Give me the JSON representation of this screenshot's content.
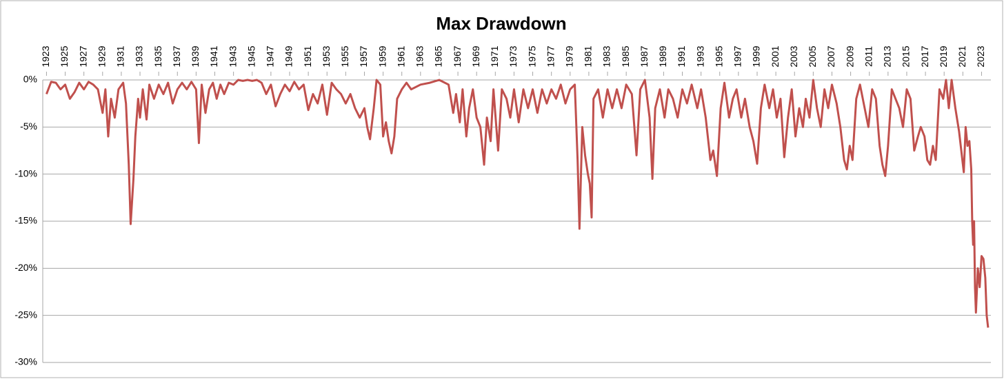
{
  "chart_data": {
    "type": "line",
    "title": "Max Drawdown",
    "color": "#c0504d",
    "grid": true,
    "xlim": [
      1922.6,
      2024.0
    ],
    "xticks": [
      1923,
      1925,
      1927,
      1929,
      1931,
      1933,
      1935,
      1937,
      1939,
      1941,
      1943,
      1945,
      1947,
      1949,
      1951,
      1953,
      1955,
      1957,
      1959,
      1961,
      1963,
      1965,
      1967,
      1969,
      1971,
      1973,
      1975,
      1977,
      1979,
      1981,
      1983,
      1985,
      1987,
      1989,
      1991,
      1993,
      1995,
      1997,
      1999,
      2001,
      2003,
      2005,
      2007,
      2009,
      2011,
      2013,
      2015,
      2017,
      2019,
      2021,
      2023
    ],
    "ylim": [
      -30,
      0
    ],
    "yticks": [
      {
        "value": 0,
        "label": "0%"
      },
      {
        "value": -5,
        "label": "-5%"
      },
      {
        "value": -10,
        "label": "-10%"
      },
      {
        "value": -15,
        "label": "-15%"
      },
      {
        "value": -20,
        "label": "-20%"
      },
      {
        "value": -25,
        "label": "-25%"
      },
      {
        "value": -30,
        "label": "-30%"
      }
    ],
    "x": [
      1923,
      1923.5,
      1924,
      1924.5,
      1925,
      1925.5,
      1926,
      1926.5,
      1927,
      1927.5,
      1928,
      1928.5,
      1929,
      1929.3,
      1929.6,
      1929.9,
      1930.3,
      1930.7,
      1931.2,
      1931.5,
      1931.8,
      1932,
      1932.3,
      1932.5,
      1932.8,
      1933,
      1933.3,
      1933.7,
      1934,
      1934.5,
      1935,
      1935.5,
      1936,
      1936.5,
      1937,
      1937.5,
      1938,
      1938.5,
      1939,
      1939.3,
      1939.6,
      1940,
      1940.4,
      1940.8,
      1941.2,
      1941.6,
      1942,
      1942.5,
      1943,
      1943.5,
      1944,
      1944.5,
      1945,
      1945.5,
      1946,
      1946.5,
      1947,
      1947.5,
      1948,
      1948.5,
      1949,
      1949.5,
      1950,
      1950.5,
      1951,
      1951.5,
      1952,
      1952.5,
      1953,
      1953.5,
      1954,
      1954.5,
      1955,
      1955.5,
      1956,
      1956.5,
      1957,
      1957.3,
      1957.6,
      1958,
      1958.3,
      1958.7,
      1959,
      1959.3,
      1959.6,
      1959.9,
      1960.2,
      1960.5,
      1961,
      1961.5,
      1962,
      1963,
      1964,
      1965,
      1966,
      1966.5,
      1966.8,
      1967.2,
      1967.5,
      1967.9,
      1968.2,
      1968.6,
      1969,
      1969.4,
      1969.8,
      1970.1,
      1970.5,
      1970.8,
      1971.3,
      1971.7,
      1972.2,
      1972.6,
      1973,
      1973.5,
      1974,
      1974.5,
      1975,
      1975.5,
      1976,
      1976.5,
      1977,
      1977.5,
      1978,
      1978.5,
      1979,
      1979.5,
      1979.8,
      1980,
      1980.3,
      1980.6,
      1980.9,
      1981.1,
      1981.3,
      1981.5,
      1982,
      1982.5,
      1983,
      1983.5,
      1984,
      1984.5,
      1985,
      1985.6,
      1986.1,
      1986.5,
      1987,
      1987.5,
      1987.8,
      1988.1,
      1988.6,
      1989.1,
      1989.5,
      1990,
      1990.5,
      1991,
      1991.5,
      1992,
      1992.6,
      1993,
      1993.5,
      1994,
      1994.3,
      1994.7,
      1995.1,
      1995.5,
      1996,
      1996.4,
      1996.8,
      1997.3,
      1997.7,
      1998.2,
      1998.6,
      1999,
      1999.4,
      1999.8,
      2000.3,
      2000.7,
      2001.1,
      2001.5,
      2001.9,
      2002.3,
      2002.7,
      2003.1,
      2003.5,
      2003.9,
      2004.2,
      2004.6,
      2005,
      2005.4,
      2005.8,
      2006.2,
      2006.6,
      2007,
      2007.5,
      2007.9,
      2008.3,
      2008.6,
      2008.9,
      2009.2,
      2009.6,
      2010,
      2010.5,
      2010.9,
      2011.3,
      2011.7,
      2012.1,
      2012.4,
      2012.7,
      2013,
      2013.4,
      2013.8,
      2014.2,
      2014.6,
      2015,
      2015.4,
      2015.8,
      2016.2,
      2016.5,
      2016.9,
      2017.2,
      2017.5,
      2017.8,
      2018.1,
      2018.5,
      2018.9,
      2019.2,
      2019.5,
      2019.8,
      2020.2,
      2020.6,
      2021.1,
      2021.3,
      2021.5,
      2021.7,
      2021.9,
      2022.0,
      2022.1,
      2022.2,
      2022.3,
      2022.4,
      2022.6,
      2022.8,
      2023,
      2023.2,
      2023.4,
      2023.55,
      2023.7
    ],
    "values": [
      -1.5,
      -0.2,
      -0.3,
      -1,
      -0.5,
      -2,
      -1.3,
      -0.3,
      -1,
      -0.2,
      -0.5,
      -1,
      -3.5,
      -1,
      -6,
      -2,
      -4,
      -1,
      -0.3,
      -2.5,
      -9,
      -15.3,
      -10.5,
      -6,
      -2,
      -4,
      -1,
      -4.2,
      -0.5,
      -2,
      -0.5,
      -1.5,
      -0.3,
      -2.5,
      -1,
      -0.3,
      -1,
      -0.2,
      -1,
      -6.7,
      -0.5,
      -3.5,
      -1,
      -0.3,
      -2,
      -0.5,
      -1.5,
      -0.3,
      -0.5,
      0,
      -0.1,
      0,
      -0.1,
      0,
      -0.3,
      -1.5,
      -0.5,
      -2.8,
      -1.5,
      -0.5,
      -1.2,
      -0.2,
      -1,
      -0.5,
      -3.2,
      -1.5,
      -2.5,
      -0.5,
      -3.7,
      -0.3,
      -1,
      -1.5,
      -2.5,
      -1.5,
      -3,
      -4,
      -3,
      -5,
      -6.3,
      -3,
      0,
      -0.5,
      -6,
      -4.5,
      -6.5,
      -7.8,
      -6,
      -2,
      -1,
      -0.3,
      -1,
      -0.5,
      -0.3,
      0,
      -0.5,
      -3.5,
      -1.5,
      -4.5,
      -1,
      -6,
      -3,
      -1,
      -4,
      -5,
      -9,
      -4,
      -6.5,
      -1,
      -7.5,
      -1,
      -2,
      -4,
      -1,
      -4.5,
      -1,
      -3,
      -1,
      -3.5,
      -1,
      -2.5,
      -1,
      -2,
      -0.5,
      -2.5,
      -1,
      -0.5,
      -8.5,
      -15.8,
      -5,
      -8,
      -10,
      -11,
      -14.6,
      -2,
      -1,
      -4,
      -1,
      -3,
      -1,
      -3,
      -0.5,
      -1.5,
      -8,
      -1,
      0,
      -4,
      -10.5,
      -3,
      -1,
      -4,
      -1,
      -2,
      -4,
      -1,
      -2.5,
      -0.5,
      -3,
      -1,
      -4,
      -8.5,
      -7.5,
      -10.2,
      -3,
      -0.3,
      -4,
      -2,
      -1,
      -4,
      -2,
      -5,
      -6.5,
      -8.9,
      -3,
      -0.5,
      -3,
      -1,
      -4,
      -2,
      -8.2,
      -4,
      -1,
      -6,
      -3,
      -5,
      -2,
      -4,
      0,
      -3,
      -5,
      -1,
      -3,
      -0.5,
      -2.5,
      -5,
      -8.5,
      -9.5,
      -7,
      -8.5,
      -2,
      -0.5,
      -3,
      -5,
      -1,
      -2,
      -7,
      -9,
      -10.2,
      -7,
      -1,
      -2,
      -3,
      -5,
      -1,
      -2,
      -7.5,
      -6,
      -5,
      -6,
      -8.5,
      -9,
      -7,
      -8.5,
      -1,
      -2,
      0,
      -3,
      0,
      -3,
      -5.5,
      -9.8,
      -5,
      -7,
      -6.5,
      -9.5,
      -15,
      -17.5,
      -15,
      -22,
      -24.7,
      -20,
      -22,
      -18.7,
      -19,
      -21,
      -25,
      -26.3
    ]
  }
}
